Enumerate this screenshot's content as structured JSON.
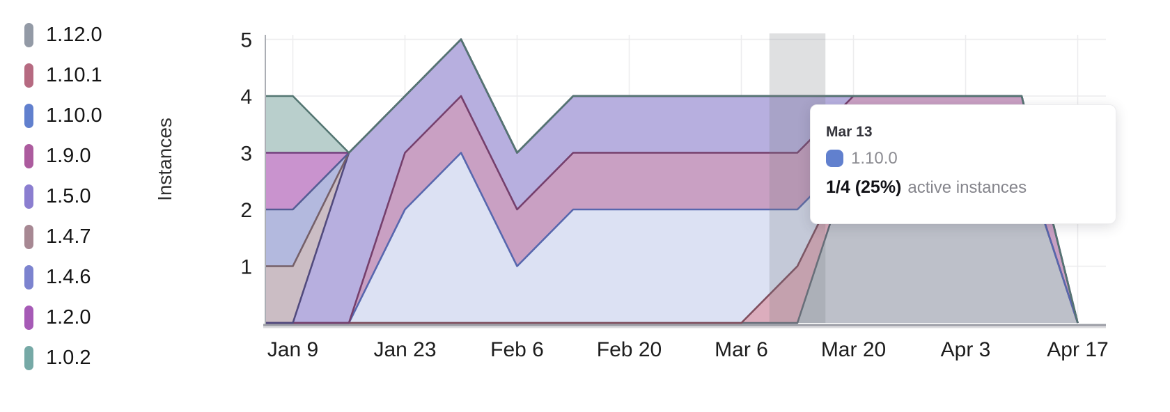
{
  "y_axis": {
    "title": "Instances",
    "ticks": [
      "5",
      "4",
      "3",
      "2",
      "1"
    ]
  },
  "x_axis": {
    "ticks": [
      "Jan 9",
      "Jan 23",
      "Feb 6",
      "Feb 20",
      "Mar 6",
      "Mar 20",
      "Apr 3",
      "Apr 17"
    ]
  },
  "tooltip": {
    "date": "Mar 13",
    "series_label": "1.10.0",
    "swatch_color": "#6180ce",
    "value": "1/4 (25%)",
    "value_suffix": "active instances"
  },
  "highlight": {
    "date": "Mar 13"
  },
  "chart_data": {
    "type": "area",
    "stacked": true,
    "title": "",
    "xlabel": "",
    "ylabel": "Instances",
    "ylim": [
      0,
      5
    ],
    "grid": true,
    "legend_position": "left",
    "highlight_x": "Mar 13",
    "x": [
      "Jan 2",
      "Jan 9",
      "Jan 16",
      "Jan 23",
      "Jan 30",
      "Feb 6",
      "Feb 13",
      "Feb 20",
      "Feb 27",
      "Mar 6",
      "Mar 13",
      "Mar 20",
      "Mar 27",
      "Apr 3",
      "Apr 10",
      "Apr 17"
    ],
    "x_tick_labels": [
      "Jan 9",
      "Jan 23",
      "Feb 6",
      "Feb 20",
      "Mar 6",
      "Mar 20",
      "Apr 3",
      "Apr 17"
    ],
    "series": [
      {
        "name": "1.12.0",
        "color": "#939aa6",
        "fill": "#bdc0c9",
        "stroke": "#636b77",
        "values": [
          0,
          0,
          0,
          0,
          0,
          0,
          0,
          0,
          0,
          0,
          0,
          3,
          3,
          3,
          3,
          0
        ]
      },
      {
        "name": "1.10.1",
        "color": "#b66a81",
        "fill": "#dcadbd",
        "stroke": "#7e4c5c",
        "values": [
          0,
          0,
          0,
          0,
          0,
          0,
          0,
          0,
          0,
          0,
          1,
          0,
          0,
          0,
          0,
          0
        ]
      },
      {
        "name": "1.10.0",
        "color": "#6180ce",
        "fill": "#dce1f3",
        "stroke": "#5767ae",
        "values": [
          0,
          0,
          0,
          2,
          3,
          1,
          2,
          2,
          2,
          2,
          1,
          0,
          0,
          0,
          0,
          0
        ]
      },
      {
        "name": "1.9.0",
        "color": "#ac5b9e",
        "fill": "#c9a0c3",
        "stroke": "#753f6c",
        "values": [
          0,
          0,
          0,
          1,
          1,
          1,
          1,
          1,
          1,
          1,
          1,
          1,
          1,
          1,
          1,
          0
        ]
      },
      {
        "name": "1.5.0",
        "color": "#8b7ed0",
        "fill": "#b7afdf",
        "stroke": "#514a7d",
        "values": [
          0,
          0,
          3,
          1,
          1,
          1,
          1,
          1,
          1,
          1,
          1,
          0,
          0,
          0,
          0,
          0
        ]
      },
      {
        "name": "1.4.7",
        "color": "#a78893",
        "fill": "#cbbdc4",
        "stroke": "#756069",
        "values": [
          1,
          1,
          0,
          0,
          0,
          0,
          0,
          0,
          0,
          0,
          0,
          0,
          0,
          0,
          0,
          0
        ]
      },
      {
        "name": "1.4.6",
        "color": "#7c83cf",
        "fill": "#b3b9de",
        "stroke": "#555c94",
        "values": [
          1,
          1,
          0,
          0,
          0,
          0,
          0,
          0,
          0,
          0,
          0,
          0,
          0,
          0,
          0,
          0
        ]
      },
      {
        "name": "1.2.0",
        "color": "#a65ab6",
        "fill": "#c993ce",
        "stroke": "#723f7d",
        "values": [
          1,
          1,
          0,
          0,
          0,
          0,
          0,
          0,
          0,
          0,
          0,
          0,
          0,
          0,
          0,
          0
        ]
      },
      {
        "name": "1.0.2",
        "color": "#76a9a6",
        "fill": "#b9cfcc",
        "stroke": "#547672",
        "values": [
          1,
          1,
          0,
          0,
          0,
          0,
          0,
          0,
          0,
          0,
          0,
          0,
          0,
          0,
          0,
          0
        ]
      }
    ],
    "colors": {
      "grid_line": "#ececee",
      "axis_line": "#9b9da5",
      "y_axis_line": "#abaeb4",
      "tick_text": "#1d1d1d",
      "axis_title_text": "#2f2f2f",
      "highlight_band": "rgba(122,124,130,0.24)"
    }
  }
}
